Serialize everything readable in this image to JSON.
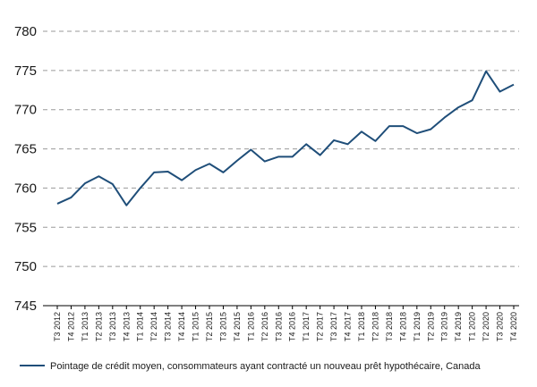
{
  "chart_data": {
    "type": "line",
    "title": "",
    "xlabel": "",
    "ylabel": "",
    "ylim": [
      745,
      780
    ],
    "yticks": [
      "745",
      "750",
      "755",
      "760",
      "765",
      "770",
      "775",
      "780"
    ],
    "grid": "horizontal-dashed",
    "legend_position": "bottom",
    "categories": [
      "T3 2012",
      "T4 2012",
      "T1 2013",
      "T2 2013",
      "T3 2013",
      "T4 2013",
      "T1 2014",
      "T2 2014",
      "T3 2014",
      "T4 2014",
      "T1 2015",
      "T2 2015",
      "T3 2015",
      "T4 2015",
      "T1 2016",
      "T2 2016",
      "T3 2016",
      "T4 2016",
      "T1 2017",
      "T2 2017",
      "T3 2017",
      "T4 2017",
      "T1 2018",
      "T2 2018",
      "T3 2018",
      "T4 2018",
      "T1 2019",
      "T2 2019",
      "T3 2019",
      "T4 2019",
      "T1 2020",
      "T2 2020",
      "T3 2020",
      "T4 2020"
    ],
    "series": [
      {
        "name": "Pointage de crédit moyen, consommateurs ayant contracté un nouveau prêt hypothécaire, Canada",
        "color": "#1f4e79",
        "values": [
          758.0,
          758.8,
          760.6,
          761.5,
          760.5,
          757.8,
          760.0,
          762.0,
          762.1,
          761.0,
          762.3,
          763.1,
          762.0,
          763.5,
          764.9,
          763.4,
          764.0,
          764.0,
          765.6,
          764.2,
          766.1,
          765.6,
          767.2,
          766.0,
          767.9,
          767.9,
          767.0,
          767.5,
          769.0,
          770.3,
          771.2,
          774.9,
          772.3,
          773.2
        ]
      }
    ]
  }
}
